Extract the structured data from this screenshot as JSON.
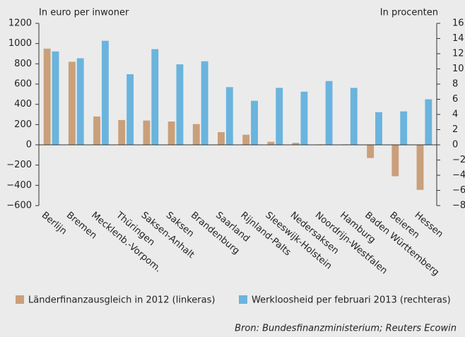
{
  "chart_data": {
    "type": "bar",
    "y_label": "In euro per inwoner",
    "y2_label": "In procenten",
    "source": "Bron: Bundesfinanzministerium; Reuters Ecowin",
    "categories": [
      "Berlijn",
      "Bremen",
      "Mecklenb.-Vorpom.",
      "Thüringen",
      "Saksen-Anhalt",
      "Saksen",
      "Brandenburg",
      "Saarland",
      "Rijnland-Palts",
      "Sleeswijk-Holstein",
      "Nedersaksen",
      "Noordrijn-Westfalen",
      "Hamburg",
      "Baden Württemberg",
      "Beieren",
      "Hessen"
    ],
    "series": [
      {
        "name": "Länderfinanzausgleich in 2012 (linkeras)",
        "color": "#c9a07a",
        "axis": "y",
        "values": [
          950,
          820,
          280,
          245,
          240,
          230,
          205,
          125,
          100,
          30,
          20,
          5,
          5,
          -130,
          -310,
          -445
        ]
      },
      {
        "name": "Werkloosheid per februari 2013 (rechteras)",
        "color": "#6ab4dd",
        "axis": "y2",
        "values": [
          12.3,
          11.4,
          13.7,
          9.3,
          12.6,
          10.6,
          11.0,
          7.6,
          5.8,
          7.5,
          7.0,
          8.4,
          7.5,
          4.3,
          4.4,
          6.0
        ]
      }
    ],
    "ylim": [
      -600,
      1200
    ],
    "yticks": [
      {
        "value": -600,
        "label": "−600"
      },
      {
        "value": -400,
        "label": "−400"
      },
      {
        "value": -200,
        "label": "−200"
      },
      0,
      200,
      400,
      600,
      800,
      1000,
      1200
    ],
    "y2lim": [
      -8,
      16
    ],
    "y2ticks": [
      {
        "value": -8,
        "label": "−8"
      },
      {
        "value": -6,
        "label": "−6"
      },
      {
        "value": -4,
        "label": "−4"
      },
      {
        "value": -2,
        "label": "−2"
      },
      0,
      2,
      4,
      6,
      8,
      10,
      12,
      14,
      16
    ]
  }
}
